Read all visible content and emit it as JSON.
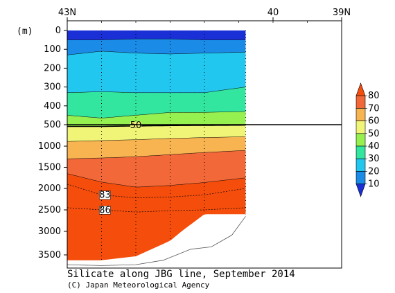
{
  "chart_data": {
    "type": "heatmap",
    "title": "Silicate along JBG line, September 2014",
    "credit": "(C) Japan Meteorological Agency",
    "y_unit_label": "(m)",
    "x_ticks": [
      {
        "label": "43N",
        "lat": 43
      },
      {
        "label": "40",
        "lat": 40
      },
      {
        "label": "39N",
        "lat": 39
      }
    ],
    "x_range": [
      43,
      39
    ],
    "upper_y_ticks": [
      0,
      100,
      200,
      300,
      400,
      500
    ],
    "lower_y_ticks": [
      500,
      1000,
      1500,
      2000,
      2500,
      3000,
      3500
    ],
    "ylim": [
      0,
      3750
    ],
    "section_x_range": [
      43,
      40.4
    ],
    "station_lats": [
      43,
      42.5,
      42,
      41.5,
      41,
      40.5
    ],
    "layers": [
      {
        "name": "<10",
        "color": "#1a2fd6",
        "top": [
          0,
          0,
          0,
          0,
          0,
          0
        ],
        "bottom": [
          50,
          50,
          45,
          45,
          50,
          50
        ]
      },
      {
        "name": "10-20",
        "color": "#1a8ce8",
        "top": [
          50,
          50,
          45,
          45,
          50,
          50
        ],
        "bottom": [
          130,
          110,
          120,
          125,
          120,
          115
        ]
      },
      {
        "name": "20-30",
        "color": "#22c7f0",
        "top": [
          130,
          110,
          120,
          125,
          120,
          115
        ],
        "bottom": [
          330,
          325,
          330,
          330,
          330,
          300
        ]
      },
      {
        "name": "30-40",
        "color": "#32e6a0",
        "top": [
          330,
          325,
          330,
          330,
          330,
          300
        ],
        "bottom": [
          450,
          465,
          450,
          435,
          435,
          430
        ]
      },
      {
        "name": "40-50",
        "color": "#96f050",
        "top": [
          450,
          465,
          450,
          435,
          435,
          430
        ],
        "bottom": [
          540,
          540,
          530,
          520,
          515,
          510
        ]
      },
      {
        "name": "50-60",
        "color": "#f0f578",
        "top": [
          540,
          540,
          530,
          520,
          515,
          510
        ],
        "bottom": [
          890,
          870,
          850,
          820,
          800,
          780
        ]
      },
      {
        "name": "60-70",
        "color": "#f7b450",
        "top": [
          890,
          870,
          850,
          820,
          800,
          780
        ],
        "bottom": [
          1300,
          1280,
          1250,
          1200,
          1150,
          1100
        ]
      },
      {
        "name": "70-80",
        "color": "#f26838",
        "top": [
          1300,
          1280,
          1250,
          1200,
          1150,
          1100
        ],
        "bottom": [
          1650,
          1850,
          1970,
          1930,
          1860,
          1750
        ]
      },
      {
        "name": ">80",
        "color": "#f54d0c",
        "top": [
          1650,
          1850,
          1970,
          1930,
          1860,
          1750
        ],
        "bottom": [
          3620,
          3620,
          3530,
          3200,
          2600,
          2600
        ]
      }
    ],
    "dashed_contours": [
      {
        "label": "83",
        "depths": [
          1900,
          2150,
          2220,
          2200,
          2150,
          2000
        ]
      },
      {
        "label": "86",
        "depths": [
          2450,
          2500,
          2550,
          2520,
          2500,
          2450
        ]
      }
    ],
    "bold_contour": {
      "label": "50",
      "depths": [
        540,
        540,
        530,
        520,
        515,
        510
      ]
    },
    "bottom_outline": {
      "lats": [
        43,
        42.5,
        42,
        41.6,
        41.2,
        40.9,
        40.6,
        40.4
      ],
      "depths": [
        3720,
        3740,
        3720,
        3620,
        3380,
        3330,
        3080,
        2650
      ]
    },
    "colorbar": {
      "levels": [
        10,
        20,
        30,
        40,
        50,
        60,
        70,
        80
      ],
      "colors": [
        "#1a2fd6",
        "#1a8ce8",
        "#22c7f0",
        "#32e6a0",
        "#96f050",
        "#f0f578",
        "#f7b450",
        "#f26838",
        "#f54d0c"
      ]
    }
  }
}
